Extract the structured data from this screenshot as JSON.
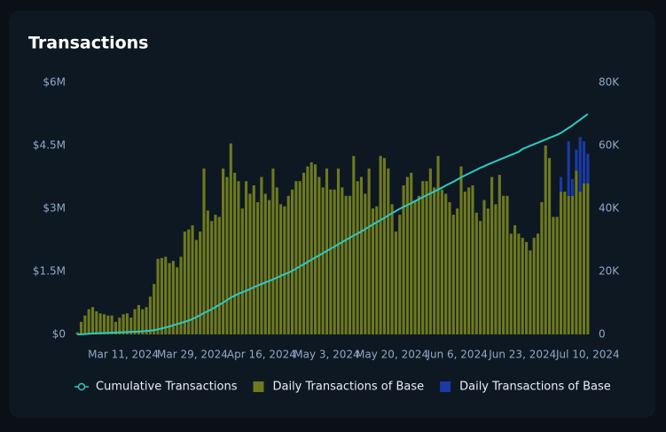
{
  "chart_data": {
    "type": "bar",
    "title": "Transactions",
    "categories": [
      null,
      null,
      null,
      null,
      null,
      null,
      null,
      null,
      null,
      null,
      null,
      null,
      "Mar 11, 2024",
      null,
      null,
      null,
      null,
      null,
      null,
      null,
      null,
      null,
      null,
      null,
      null,
      null,
      null,
      null,
      null,
      null,
      "Mar 29, 2024",
      null,
      null,
      null,
      null,
      null,
      null,
      null,
      null,
      null,
      null,
      null,
      null,
      null,
      null,
      null,
      null,
      null,
      "Apr 16, 2024",
      null,
      null,
      null,
      null,
      null,
      null,
      null,
      null,
      null,
      null,
      null,
      null,
      null,
      null,
      null,
      null,
      "May 3, 2024",
      null,
      null,
      null,
      null,
      null,
      null,
      null,
      null,
      null,
      null,
      null,
      null,
      null,
      null,
      null,
      null,
      "May 20, 2024",
      null,
      null,
      null,
      null,
      null,
      null,
      null,
      null,
      null,
      null,
      null,
      null,
      null,
      null,
      null,
      null,
      "Jun 6, 2024",
      null,
      null,
      null,
      null,
      null,
      null,
      null,
      null,
      null,
      null,
      null,
      null,
      null,
      null,
      null,
      null,
      "Jun 23, 2024",
      null,
      null,
      null,
      null,
      null,
      null,
      null,
      null,
      null,
      null,
      null,
      null,
      null,
      null,
      null,
      null,
      "Jul 10, 2024"
    ],
    "series": [
      {
        "name": "Cumulative Transactions",
        "type": "line",
        "axis": "y2",
        "color": "#2ec8c4",
        "values": [
          0,
          0.05,
          0.1,
          0.2,
          0.3,
          0.35,
          0.4,
          0.45,
          0.5,
          0.55,
          0.6,
          0.65,
          0.7,
          0.75,
          0.8,
          0.85,
          0.9,
          1.0,
          1.1,
          1.2,
          1.35,
          1.6,
          1.9,
          2.2,
          2.5,
          2.9,
          3.3,
          3.6,
          4.0,
          4.4,
          4.9,
          5.5,
          6.1,
          6.8,
          7.4,
          8.0,
          8.7,
          9.4,
          10.1,
          10.9,
          11.7,
          12.3,
          12.9,
          13.4,
          13.9,
          14.4,
          15.0,
          15.5,
          16.0,
          16.5,
          17.0,
          17.5,
          18.0,
          18.6,
          19.1,
          19.6,
          20.2,
          20.9,
          21.6,
          22.3,
          23.0,
          23.7,
          24.4,
          25.1,
          25.8,
          26.5,
          27.2,
          27.9,
          28.6,
          29.3,
          30.0,
          30.7,
          31.4,
          32.0,
          32.7,
          33.4,
          34.2,
          34.9,
          35.6,
          36.3,
          37.0,
          37.8,
          38.5,
          39.2,
          39.9,
          40.5,
          41.1,
          41.7,
          42.3,
          43.0,
          43.6,
          44.2,
          44.8,
          45.4,
          46.0,
          46.6,
          47.3,
          47.9,
          48.5,
          49.2,
          49.9,
          50.5,
          51.1,
          51.7,
          52.3,
          52.9,
          53.4,
          54.0,
          54.5,
          55.0,
          55.5,
          56.0,
          56.5,
          57.0,
          57.5,
          58.0,
          58.9,
          59.4,
          59.9,
          60.4,
          60.9,
          61.4,
          61.9,
          62.4,
          62.9,
          63.4,
          64.0,
          64.8,
          65.6,
          66.4,
          67.3,
          68.2,
          69.1,
          70.0
        ]
      },
      {
        "name": "Daily Transactions of Base",
        "type": "bar",
        "color": "#6e7a1e",
        "values": [
          0.05,
          0.3,
          0.45,
          0.6,
          0.65,
          0.55,
          0.5,
          0.48,
          0.45,
          0.45,
          0.3,
          0.4,
          0.48,
          0.5,
          0.4,
          0.6,
          0.7,
          0.6,
          0.65,
          0.9,
          1.2,
          1.8,
          1.82,
          1.85,
          1.7,
          1.75,
          1.6,
          1.85,
          2.45,
          2.5,
          2.6,
          2.25,
          2.45,
          3.95,
          2.95,
          2.7,
          2.85,
          2.8,
          3.95,
          3.75,
          4.55,
          3.85,
          3.65,
          3.0,
          3.65,
          3.35,
          3.55,
          3.15,
          3.75,
          3.35,
          3.2,
          3.95,
          3.5,
          3.1,
          3.05,
          3.3,
          3.45,
          3.65,
          3.65,
          3.85,
          4.0,
          4.1,
          4.05,
          3.75,
          3.5,
          3.95,
          3.45,
          3.45,
          3.95,
          3.5,
          3.3,
          3.3,
          4.25,
          3.65,
          3.75,
          3.35,
          3.95,
          3.0,
          3.05,
          4.25,
          4.2,
          3.95,
          3.1,
          2.45,
          2.85,
          3.55,
          3.75,
          3.85,
          3.2,
          3.3,
          3.65,
          3.65,
          3.95,
          3.5,
          4.25,
          3.45,
          3.35,
          3.15,
          2.85,
          3.0,
          4.0,
          3.4,
          3.5,
          3.55,
          2.9,
          2.7,
          3.2,
          3.0,
          3.75,
          3.1,
          3.8,
          3.3,
          3.3,
          2.4,
          2.6,
          2.4,
          2.3,
          2.2,
          2.0,
          2.3,
          2.4,
          3.15,
          4.5,
          4.2,
          2.8,
          2.8,
          3.4,
          3.4,
          3.3,
          3.3,
          3.9,
          3.4,
          3.6,
          3.6
        ]
      },
      {
        "name": "Daily Transactions of Base",
        "type": "bar",
        "color": "#1a3aa8",
        "values": [
          null,
          null,
          null,
          null,
          null,
          null,
          null,
          null,
          null,
          null,
          null,
          null,
          null,
          null,
          null,
          null,
          null,
          null,
          null,
          null,
          null,
          null,
          null,
          null,
          null,
          null,
          null,
          null,
          null,
          null,
          null,
          null,
          null,
          null,
          null,
          null,
          null,
          null,
          null,
          null,
          null,
          null,
          null,
          null,
          null,
          null,
          null,
          null,
          null,
          null,
          null,
          null,
          null,
          null,
          null,
          null,
          null,
          null,
          null,
          null,
          null,
          null,
          null,
          null,
          null,
          null,
          null,
          null,
          null,
          null,
          null,
          null,
          null,
          null,
          null,
          null,
          null,
          null,
          null,
          null,
          null,
          null,
          null,
          null,
          null,
          null,
          null,
          null,
          null,
          null,
          null,
          null,
          null,
          null,
          null,
          null,
          null,
          null,
          null,
          null,
          null,
          null,
          null,
          null,
          null,
          null,
          null,
          null,
          null,
          null,
          null,
          null,
          null,
          null,
          null,
          null,
          null,
          null,
          null,
          null,
          null,
          null,
          null,
          null,
          null,
          null,
          0.35,
          null,
          1.3,
          0.4,
          0.5,
          1.3,
          1.0,
          0.7
        ]
      }
    ],
    "ylim": [
      0,
      6
    ],
    "yticks": [
      {
        "value": 0,
        "label": "$0"
      },
      {
        "value": 1.5,
        "label": "$1.5M"
      },
      {
        "value": 3,
        "label": "$3M"
      },
      {
        "value": 4.5,
        "label": "$4.5M"
      },
      {
        "value": 6,
        "label": "$6M"
      }
    ],
    "y2lim": [
      0,
      80
    ],
    "y2ticks": [
      0,
      {
        "value": 20,
        "label": "20K"
      },
      {
        "value": 40,
        "label": "40K"
      },
      {
        "value": 60,
        "label": "60K"
      },
      {
        "value": 80,
        "label": "80K"
      }
    ],
    "stacked": true
  }
}
